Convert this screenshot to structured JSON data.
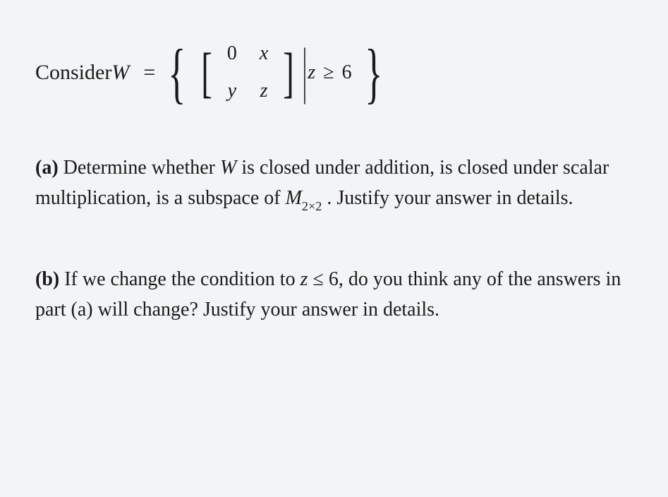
{
  "definition": {
    "prefix": "Consider ",
    "set_var": "W",
    "equals": "=",
    "matrix": {
      "r1c1": "0",
      "r1c2": "x",
      "r2c1": "y",
      "r2c2": "z"
    },
    "condition_var": "z",
    "condition_op": "≥",
    "condition_val": "6"
  },
  "partA": {
    "label": "(a)",
    "text_before_W": " Determine whether ",
    "var_W": "W",
    "text_mid": " is closed under addition, is closed under scalar multiplication, is a subspace of ",
    "var_M": "M",
    "sub_M": "2×2",
    "text_after": " . Justify your answer in details."
  },
  "partB": {
    "label": "(b)",
    "text_before_z": " If we change the condition to ",
    "var_z": "z",
    "op": " ≤ ",
    "val": "6",
    "text_after": ", do you think any of the answers in part (a) will change? Justify your answer in details."
  },
  "styling": {
    "background_color": "#f2f4f6",
    "text_color": "#1a1a1a",
    "body_fontsize": 28,
    "math_fontsize": 28,
    "brace_fontsize": 95,
    "bracket_fontsize": 78,
    "font_family": "Georgia, Times New Roman, serif"
  }
}
